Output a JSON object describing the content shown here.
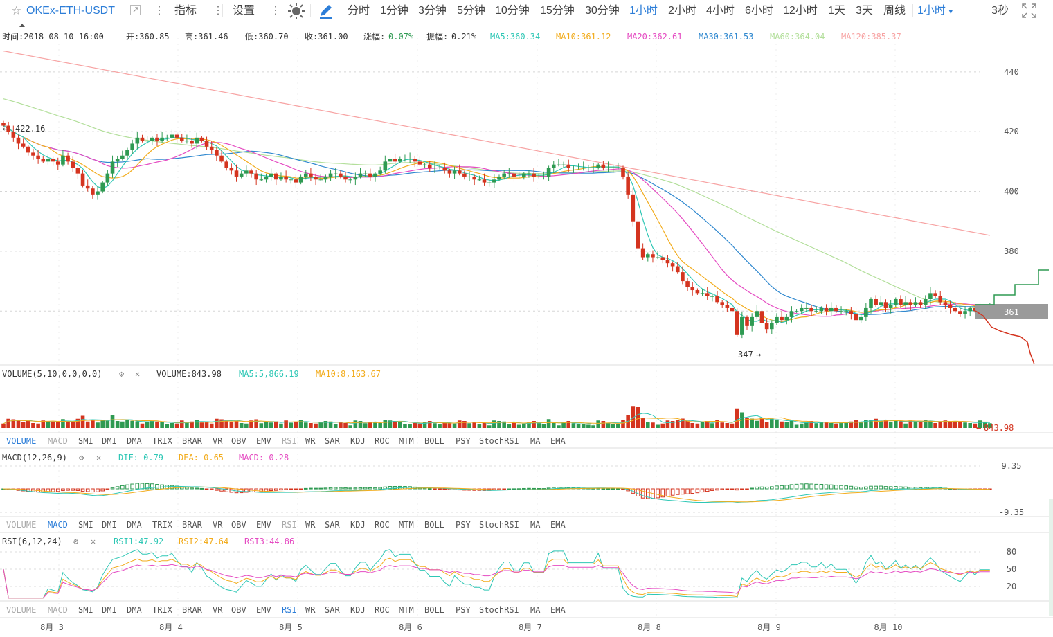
{
  "toolbar": {
    "symbol": "OKEx-ETH-USDT",
    "indicators_label": "指标",
    "settings_label": "设置",
    "intervals": [
      "分时",
      "1分钟",
      "3分钟",
      "5分钟",
      "10分钟",
      "15分钟",
      "30分钟",
      "1小时",
      "2小时",
      "4小时",
      "6小时",
      "12小时",
      "1天",
      "3天",
      "周线"
    ],
    "active_interval": "1小时",
    "dropdown_label": "1小时",
    "refresh_label": "3秒"
  },
  "info": {
    "time": "时间:2018-08-10 16:00",
    "open": "开:360.85",
    "high": "高:361.46",
    "low": "低:360.70",
    "close": "收:361.00",
    "change_label": "涨幅:",
    "change_value": "0.07%",
    "amp_label": "振幅:",
    "amp_value": "0.21%",
    "ma5": "MA5:360.34",
    "ma10": "MA10:361.12",
    "ma20": "MA20:362.61",
    "ma30": "MA30:361.53",
    "ma60": "MA60:364.04",
    "ma120": "MA120:385.37"
  },
  "colors": {
    "up": "#2e9a52",
    "down": "#d4341f",
    "ma5": "#2ec7b5",
    "ma10": "#f2ac1d",
    "ma20": "#e54bc2",
    "ma30": "#2f88cf",
    "ma60": "#b3df9b",
    "ma120": "#f7a3a3",
    "accent": "#2d7ed8"
  },
  "main_axis": {
    "ticks": [
      "440",
      "420",
      "400",
      "380"
    ],
    "current_price": "361",
    "max_marker": "422.16",
    "min_marker": "347"
  },
  "volume_panel": {
    "title": "VOLUME(5,10,0,0,0,0)",
    "volume": "VOLUME:843.98",
    "ma5": "MA5:5,866.19",
    "ma10": "MA10:8,163.67",
    "last_label": "843.98"
  },
  "macd_panel": {
    "title": "MACD(12,26,9)",
    "dif": "DIF:-0.79",
    "dea": "DEA:-0.65",
    "macd": "MACD:-0.28",
    "top_tick": "9.35",
    "bottom_tick": "-9.35"
  },
  "rsi_panel": {
    "title": "RSI(6,12,24)",
    "rsi1": "RSI1:47.92",
    "rsi2": "RSI2:47.64",
    "rsi3": "RSI3:44.86",
    "ticks": [
      "80",
      "50",
      "20"
    ]
  },
  "indicator_tabs": [
    "VOLUME",
    "MACD",
    "SMI",
    "DMI",
    "DMA",
    "TRIX",
    "BRAR",
    "VR",
    "OBV",
    "EMV",
    "RSI",
    "WR",
    "SAR",
    "KDJ",
    "ROC",
    "MTM",
    "BOLL",
    "PSY",
    "StochRSI",
    "MA",
    "EMA"
  ],
  "active_tabs": [
    "VOLUME",
    "MACD",
    "RSI"
  ],
  "dates": [
    "8月 3",
    "8月 4",
    "8月 5",
    "8月 6",
    "8月 7",
    "8月 8",
    "8月 9",
    "8月 10"
  ],
  "chart_data": {
    "type": "candlestick",
    "interval": "1小时",
    "price_ylim": [
      342,
      452
    ],
    "close_series": [
      {
        "day": "8月 3",
        "values": [
          422,
          420,
          418,
          416,
          415,
          413,
          412,
          411,
          410,
          411,
          410,
          409,
          412,
          410,
          408,
          406,
          402,
          401,
          399,
          400,
          403,
          406,
          410,
          411,
          412
        ]
      },
      {
        "day": "8月 4",
        "values": [
          414,
          416,
          418,
          417,
          417,
          418,
          417,
          418,
          418,
          419,
          418,
          417,
          417,
          416,
          418,
          417,
          415,
          414,
          412,
          410,
          408,
          407,
          405,
          406,
          407
        ]
      },
      {
        "day": "8月 5",
        "values": [
          406,
          404,
          404,
          405,
          406,
          404,
          405,
          404,
          404,
          403,
          405,
          406,
          405,
          404,
          404,
          405,
          406,
          406,
          405,
          404,
          404,
          405,
          406,
          406,
          405
        ]
      },
      {
        "day": "8月 6",
        "values": [
          406,
          407,
          410,
          411,
          410,
          411,
          411,
          411,
          410,
          409,
          409,
          408,
          408,
          408,
          407,
          406,
          407,
          406,
          405,
          405,
          404,
          404,
          403,
          403,
          404
        ]
      },
      {
        "day": "8月 7",
        "values": [
          405,
          406,
          406,
          405,
          405,
          406,
          406,
          405,
          405,
          405,
          408,
          409,
          409,
          409,
          408,
          408,
          408,
          408,
          408,
          408,
          409,
          408,
          408,
          408,
          408
        ]
      },
      {
        "day": "8月 8",
        "values": [
          405,
          399,
          390,
          381,
          378,
          379,
          378,
          378,
          377,
          376,
          375,
          373,
          370,
          368,
          367,
          366,
          366,
          365,
          365,
          363,
          362,
          361,
          360,
          352,
          358
        ]
      },
      {
        "day": "8月 9",
        "values": [
          355,
          358,
          360,
          356,
          354,
          356,
          358,
          357,
          358,
          360,
          360,
          361,
          361,
          360,
          360,
          361,
          360,
          361,
          360,
          360,
          360,
          359,
          357,
          358,
          361
        ]
      },
      {
        "day": "8月 10",
        "values": [
          364,
          362,
          363,
          361,
          362,
          364,
          362,
          363,
          362,
          363,
          362,
          364,
          366,
          365,
          363,
          362,
          361,
          360,
          359,
          360,
          361,
          360,
          361,
          361,
          361
        ]
      }
    ]
  }
}
